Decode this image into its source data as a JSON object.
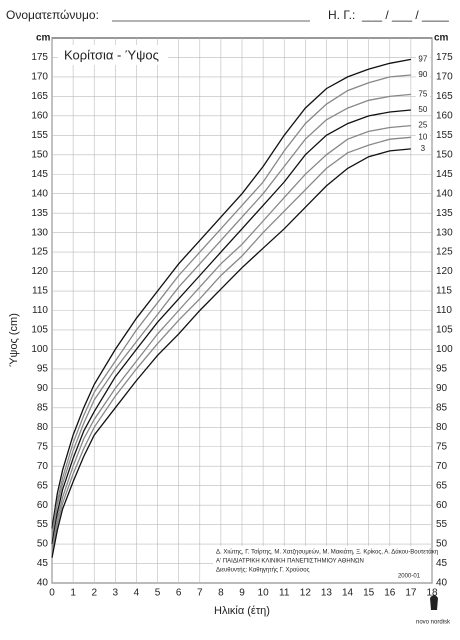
{
  "header": {
    "name_label": "Ονοματεπώνυμο:",
    "date_label": "Η. Γ.:",
    "date_field": "___ / ___ / ____"
  },
  "chart_data": {
    "type": "line",
    "title": "Κορίτσια - Ύψος",
    "y_unit": "cm",
    "x_label": "Ηλικία (έτη)",
    "y_label": "Ύψος (cm)",
    "x": [
      0,
      0.25,
      0.5,
      1,
      1.5,
      2,
      3,
      4,
      5,
      6,
      7,
      8,
      9,
      10,
      11,
      12,
      13,
      14,
      15,
      16,
      17
    ],
    "series": [
      {
        "name": "97",
        "color": "#111111",
        "values": [
          54,
          63,
          69,
          78,
          85,
          91,
          100,
          108,
          115,
          122,
          128,
          134,
          140,
          147,
          155,
          162,
          167,
          170,
          172,
          173.5,
          174.5
        ]
      },
      {
        "name": "90",
        "color": "#888888",
        "values": [
          52.5,
          61,
          67,
          76,
          83,
          89,
          97,
          105,
          112,
          119,
          125,
          131,
          137,
          143,
          151,
          158,
          163,
          166.5,
          168.5,
          170,
          170.5
        ]
      },
      {
        "name": "75",
        "color": "#888888",
        "values": [
          51.5,
          60,
          65.5,
          74,
          81,
          87,
          95,
          102,
          109,
          116,
          122,
          128,
          134,
          140,
          147,
          154,
          159,
          162,
          164,
          165,
          165.5
        ]
      },
      {
        "name": "50",
        "color": "#111111",
        "values": [
          50,
          58,
          64,
          72,
          79,
          84,
          93,
          100,
          107,
          113,
          119,
          125,
          131,
          137,
          143,
          150,
          155,
          158,
          160,
          161,
          161.5
        ]
      },
      {
        "name": "25",
        "color": "#888888",
        "values": [
          48.5,
          56.5,
          62,
          70,
          77,
          82,
          90,
          97,
          104,
          110,
          116,
          122,
          127,
          133,
          139,
          145,
          150,
          154,
          156,
          157,
          157.5
        ]
      },
      {
        "name": "10",
        "color": "#888888",
        "values": [
          47.5,
          55,
          60.5,
          68,
          74.5,
          80,
          88,
          95,
          101.5,
          107.5,
          113,
          119,
          124,
          130,
          135.5,
          141,
          146.5,
          150.5,
          152.5,
          154,
          154.5
        ]
      },
      {
        "name": "3",
        "color": "#111111",
        "values": [
          46.5,
          53.5,
          59,
          66,
          72.5,
          78,
          85,
          92,
          98.5,
          104,
          110,
          115.5,
          121,
          126,
          131,
          136.5,
          142,
          146.5,
          149.5,
          151,
          151.5
        ]
      }
    ],
    "xlim": [
      0,
      18
    ],
    "xticks": [
      0,
      1,
      2,
      3,
      4,
      5,
      6,
      7,
      8,
      9,
      10,
      11,
      12,
      13,
      14,
      15,
      16,
      17,
      18
    ],
    "ylim": [
      40,
      180
    ],
    "yticks": [
      40,
      45,
      50,
      55,
      60,
      65,
      70,
      75,
      80,
      85,
      90,
      95,
      100,
      105,
      110,
      115,
      120,
      125,
      130,
      135,
      140,
      145,
      150,
      155,
      160,
      165,
      170,
      175
    ],
    "grid": true
  },
  "credits": [
    "Δ. Χιώτης, Γ. Τσίρτης, Μ. Χατζησυμεών, Μ. Μακιάτη, Ξ. Κρίκος, Α. Δάκου-Βουτετάκη",
    "Α' ΠΑΙΔΙΑΤΡΙΚΗ ΚΛΙΝΙΚΗ ΠΑΝΕΠΙΣΤΗΜΙΟΥ ΑΘΗΝΩΝ",
    "Διευθυντής: Καθηγητής Γ. Χρούσος"
  ],
  "edition": "2000-01",
  "logo": "novo nordisk"
}
